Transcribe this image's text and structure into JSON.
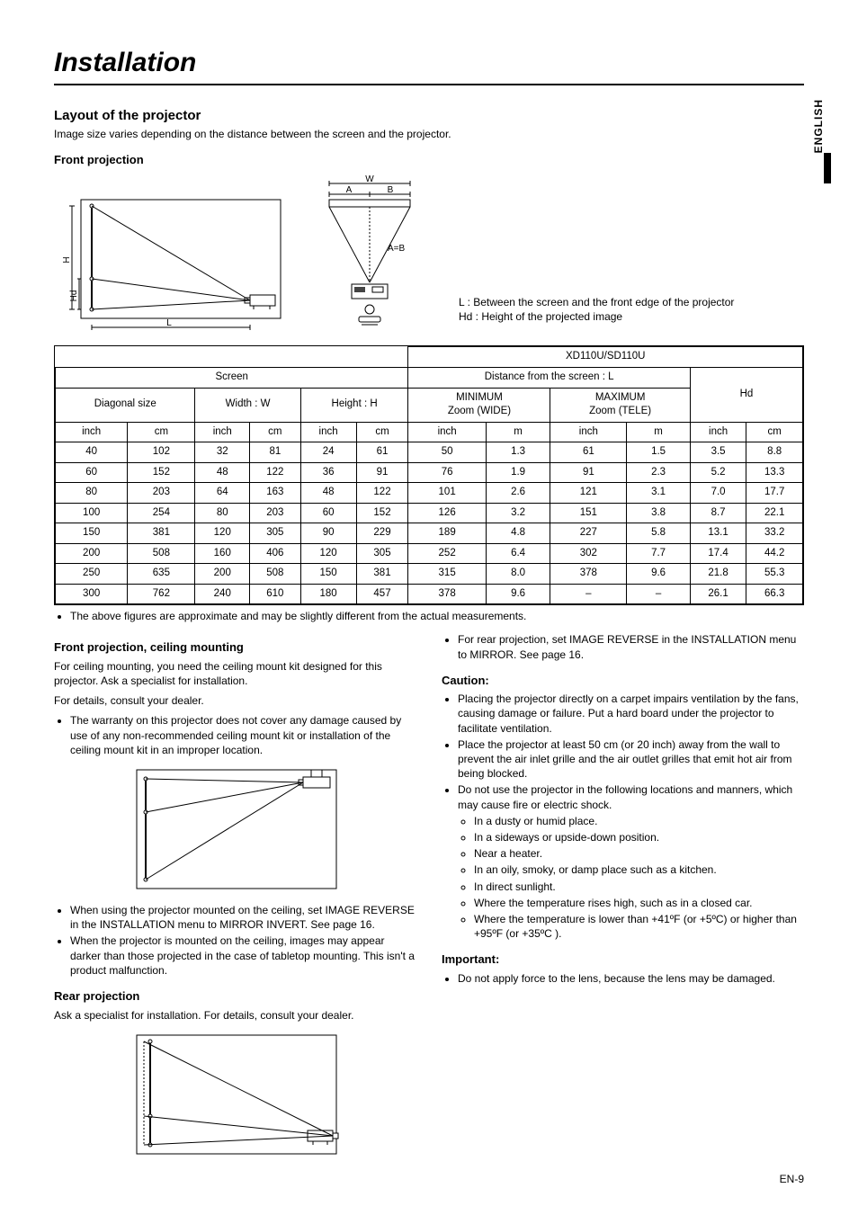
{
  "page": {
    "title": "Installation",
    "side_label": "ENGLISH",
    "page_number": "EN-9"
  },
  "section1": {
    "heading": "Layout of the projector",
    "intro": "Image size varies depending on the distance between the screen and the projector.",
    "sub_heading": "Front projection",
    "legend1": "L : Between the screen and the front edge of the projector",
    "legend2": "Hd : Height of the projected image"
  },
  "diagram1": {
    "labels": {
      "L": "L",
      "H": "H",
      "Hd": "Hd",
      "W": "W",
      "A": "A",
      "B": "B",
      "AeqB": "A=B"
    }
  },
  "table": {
    "model": "XD110U/SD110U",
    "headers": {
      "screen": "Screen",
      "distance": "Distance from the screen : L",
      "diagonal": "Diagonal size",
      "width": "Width : W",
      "height": "Height : H",
      "min": "MINIMUM\nZoom (WIDE)",
      "max": "MAXIMUM\nZoom (TELE)",
      "hd": "Hd",
      "inch": "inch",
      "cm": "cm",
      "m": "m"
    },
    "rows": [
      [
        "40",
        "102",
        "32",
        "81",
        "24",
        "61",
        "50",
        "1.3",
        "61",
        "1.5",
        "3.5",
        "8.8"
      ],
      [
        "60",
        "152",
        "48",
        "122",
        "36",
        "91",
        "76",
        "1.9",
        "91",
        "2.3",
        "5.2",
        "13.3"
      ],
      [
        "80",
        "203",
        "64",
        "163",
        "48",
        "122",
        "101",
        "2.6",
        "121",
        "3.1",
        "7.0",
        "17.7"
      ],
      [
        "100",
        "254",
        "80",
        "203",
        "60",
        "152",
        "126",
        "3.2",
        "151",
        "3.8",
        "8.7",
        "22.1"
      ],
      [
        "150",
        "381",
        "120",
        "305",
        "90",
        "229",
        "189",
        "4.8",
        "227",
        "5.8",
        "13.1",
        "33.2"
      ],
      [
        "200",
        "508",
        "160",
        "406",
        "120",
        "305",
        "252",
        "6.4",
        "302",
        "7.7",
        "17.4",
        "44.2"
      ],
      [
        "250",
        "635",
        "200",
        "508",
        "150",
        "381",
        "315",
        "8.0",
        "378",
        "9.6",
        "21.8",
        "55.3"
      ],
      [
        "300",
        "762",
        "240",
        "610",
        "180",
        "457",
        "378",
        "9.6",
        "–",
        "–",
        "26.1",
        "66.3"
      ]
    ],
    "note": "The above figures are approximate and may be slightly different from the actual measurements."
  },
  "ceiling": {
    "heading": "Front projection, ceiling mounting",
    "p1": "For ceiling mounting, you need the ceiling mount kit designed for this projector. Ask a specialist for installation.",
    "p2": "For details, consult your dealer.",
    "li1": "The warranty on this projector does not cover any damage caused by use of any non-recommended ceiling mount kit or installation of the ceiling mount kit in an improper location.",
    "li2": "When using the projector mounted on the ceiling, set IMAGE REVERSE in the INSTALLATION menu to MIRROR INVERT. See page 16.",
    "li3": "When the projector is mounted on the ceiling, images may appear darker than those projected in the case of tabletop mounting. This isn't a product malfunction."
  },
  "rear": {
    "heading": "Rear projection",
    "p1": "Ask a specialist for installation. For details, consult your dealer.",
    "li1": "For rear projection, set IMAGE REVERSE in the INSTALLATION menu to MIRROR. See page 16."
  },
  "caution": {
    "heading": "Caution:",
    "li1": "Placing the projector directly on a carpet impairs ventilation by the fans, causing damage or failure. Put a hard board under the projector to facilitate ventilation.",
    "li2": "Place the projector at least 50 cm (or 20 inch) away from the wall to prevent the air inlet grille and the air outlet grilles that emit hot air from being blocked.",
    "li3": "Do not use the projector in the following locations and manners, which may cause fire or electric shock.",
    "sub1": "In a dusty or humid place.",
    "sub2": "In a sideways or upside-down position.",
    "sub3": "Near a heater.",
    "sub4": "In an oily, smoky, or damp place such as a kitchen.",
    "sub5": "In direct sunlight.",
    "sub6": "Where the temperature rises high, such as in a closed car.",
    "sub7": "Where the temperature is lower than +41ºF (or +5ºC) or higher than +95ºF (or +35ºC )."
  },
  "important": {
    "heading": "Important:",
    "li1": "Do not apply force to the lens, because the lens may be damaged."
  }
}
